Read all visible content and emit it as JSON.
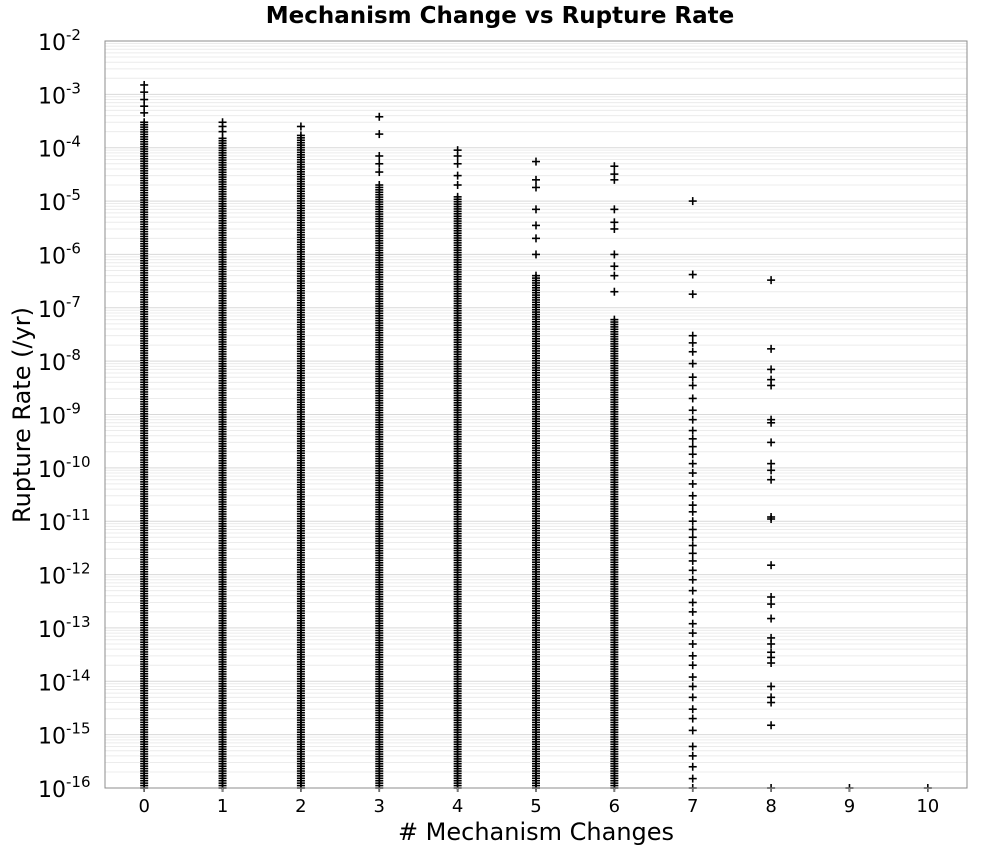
{
  "chart_data": {
    "type": "scatter",
    "title": "Mechanism Change vs Rupture Rate",
    "xlabel": "# Mechanism Changes",
    "ylabel": "Rupture Rate (/yr)",
    "x_ticks": [
      "0",
      "1",
      "2",
      "3",
      "4",
      "5",
      "6",
      "7",
      "8",
      "9",
      "10"
    ],
    "xlim": [
      -0.5,
      10.5
    ],
    "y_scale": "log",
    "ylim": [
      1e-16,
      0.01
    ],
    "y_ticks": [
      {
        "base": "10",
        "exp": "-2"
      },
      {
        "base": "10",
        "exp": "-3"
      },
      {
        "base": "10",
        "exp": "-4"
      },
      {
        "base": "10",
        "exp": "-5"
      },
      {
        "base": "10",
        "exp": "-6"
      },
      {
        "base": "10",
        "exp": "-7"
      },
      {
        "base": "10",
        "exp": "-8"
      },
      {
        "base": "10",
        "exp": "-9"
      },
      {
        "base": "10",
        "exp": "-10"
      },
      {
        "base": "10",
        "exp": "-11"
      },
      {
        "base": "10",
        "exp": "-12"
      },
      {
        "base": "10",
        "exp": "-13"
      },
      {
        "base": "10",
        "exp": "-14"
      },
      {
        "base": "10",
        "exp": "-15"
      },
      {
        "base": "10",
        "exp": "-16"
      }
    ],
    "marker": "plus",
    "marker_color": "#000000",
    "grid": true,
    "series": [
      {
        "x": 0,
        "dense_range": [
          1e-16,
          0.0003
        ],
        "outliers": [
          0.0015,
          0.0011,
          0.0008,
          0.0006,
          0.00045
        ]
      },
      {
        "x": 1,
        "dense_range": [
          1e-16,
          0.00015
        ],
        "outliers": [
          0.0003,
          0.00025,
          0.0002
        ]
      },
      {
        "x": 2,
        "dense_range": [
          1e-16,
          0.00017
        ],
        "outliers": [
          0.00025
        ]
      },
      {
        "x": 3,
        "dense_range": [
          1e-16,
          2e-05
        ],
        "outliers": [
          0.00038,
          0.00018,
          7e-05,
          5e-05,
          3.5e-05
        ]
      },
      {
        "x": 4,
        "dense_range": [
          1e-16,
          1.2e-05
        ],
        "outliers": [
          9e-05,
          7e-05,
          5e-05,
          3e-05,
          2e-05
        ]
      },
      {
        "x": 5,
        "dense_range": [
          1e-16,
          4e-07
        ],
        "outliers": [
          5.5e-05,
          2.5e-05,
          1.8e-05,
          7e-06,
          3.5e-06,
          2e-06,
          1e-06
        ]
      },
      {
        "x": 6,
        "dense_range": [
          1e-16,
          6e-08
        ],
        "outliers": [
          4.5e-05,
          3.2e-05,
          2.5e-05,
          7e-06,
          4e-06,
          3e-06,
          1e-06,
          6e-07,
          4e-07,
          2e-07
        ]
      },
      {
        "x": 7,
        "dense_range": [],
        "outliers": [
          1e-05,
          4.2e-07,
          1.8e-07,
          3e-08,
          2.2e-08,
          1.5e-08,
          9e-09,
          5e-09,
          3.5e-09,
          2e-09,
          1.2e-09,
          8e-10,
          5e-10,
          3.5e-10,
          2.5e-10,
          1.8e-10,
          1.2e-10,
          8e-11,
          5e-11,
          3e-11,
          2e-11,
          1.5e-11,
          1e-11,
          7e-12,
          5e-12,
          3.5e-12,
          2.5e-12,
          1.8e-12,
          1.2e-12,
          8e-13,
          5e-13,
          3e-13,
          2e-13,
          1.2e-13,
          8e-14,
          5e-14,
          3e-14,
          2e-14,
          1.2e-14,
          8e-15,
          5e-15,
          3e-15,
          2e-15,
          1.2e-15,
          6e-16,
          4e-16,
          2.5e-16,
          1.5e-16,
          1e-16
        ]
      },
      {
        "x": 8,
        "dense_range": [],
        "outliers": [
          3.3e-07,
          1.7e-08,
          7e-09,
          4.5e-09,
          3.5e-09,
          8e-10,
          7e-10,
          3e-10,
          1.2e-10,
          9e-11,
          6e-11,
          1.2e-11,
          1.1e-11,
          1.5e-12,
          3.8e-13,
          2.8e-13,
          1.5e-13,
          6.5e-14,
          5e-14,
          3.5e-14,
          2.8e-14,
          2.2e-14,
          8e-15,
          5e-15,
          4e-15,
          1.5e-15,
          1e-16
        ]
      },
      {
        "x": 9,
        "dense_range": [],
        "outliers": [
          1e-16
        ]
      },
      {
        "x": 10,
        "dense_range": [],
        "outliers": [
          1e-16
        ]
      }
    ]
  }
}
